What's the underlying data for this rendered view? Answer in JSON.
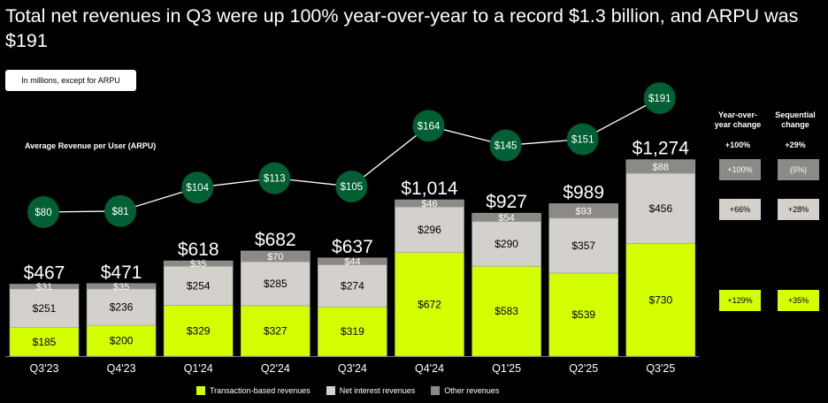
{
  "title": "Total net revenues in Q3 were up 100% year-over-year to a record $1.3 billion, and ARPU was $191",
  "unit_note": "In millions, except for ARPU",
  "arpu_label": "Average Revenue per User (ARPU)",
  "colors": {
    "transaction": "#D4FF00",
    "net_interest": "#D4D0CB",
    "other": "#8C8A86",
    "arpu_marker": "#005F33",
    "background": "#000000"
  },
  "changes": {
    "yoy_header": "Year-over-year change",
    "seq_header": "Sequential change",
    "total": {
      "yoy": "+100%",
      "seq": "+29%"
    },
    "other": {
      "yoy": "+100%",
      "seq": "(5%)"
    },
    "net_interest": {
      "yoy": "+66%",
      "seq": "+28%"
    },
    "transaction": {
      "yoy": "+129%",
      "seq": "+35%"
    }
  },
  "legend": [
    {
      "key": "transaction",
      "label": "Transaction-based revenues"
    },
    {
      "key": "net_interest",
      "label": "Net interest revenues"
    },
    {
      "key": "other",
      "label": "Other revenues"
    }
  ],
  "chart_data": {
    "type": "bar",
    "stacked": true,
    "title": "Total net revenues",
    "categories": [
      "Q3'23",
      "Q4'23",
      "Q1'24",
      "Q2'24",
      "Q3'24",
      "Q4'24",
      "Q1'25",
      "Q2'25",
      "Q3'25"
    ],
    "series": [
      {
        "name": "Transaction-based revenues",
        "key": "transaction",
        "values": [
          185,
          200,
          329,
          327,
          319,
          672,
          583,
          539,
          730
        ]
      },
      {
        "name": "Net interest revenues",
        "key": "net_interest",
        "values": [
          251,
          236,
          254,
          285,
          274,
          296,
          290,
          357,
          456
        ]
      },
      {
        "name": "Other revenues",
        "key": "other",
        "values": [
          31,
          35,
          35,
          70,
          44,
          46,
          54,
          93,
          88
        ]
      }
    ],
    "totals": [
      "$467",
      "$471",
      "$618",
      "$682",
      "$637",
      "$1,014",
      "$927",
      "$989",
      "$1,274"
    ],
    "arpu": {
      "name": "Average Revenue per User (ARPU)",
      "type": "line",
      "values": [
        80,
        81,
        104,
        113,
        105,
        164,
        145,
        151,
        191
      ],
      "labels": [
        "$80",
        "$81",
        "$104",
        "$113",
        "$105",
        "$164",
        "$145",
        "$151",
        "$191"
      ]
    },
    "xlabel": "",
    "ylabel": "",
    "legend_position": "bottom",
    "grid": false
  }
}
